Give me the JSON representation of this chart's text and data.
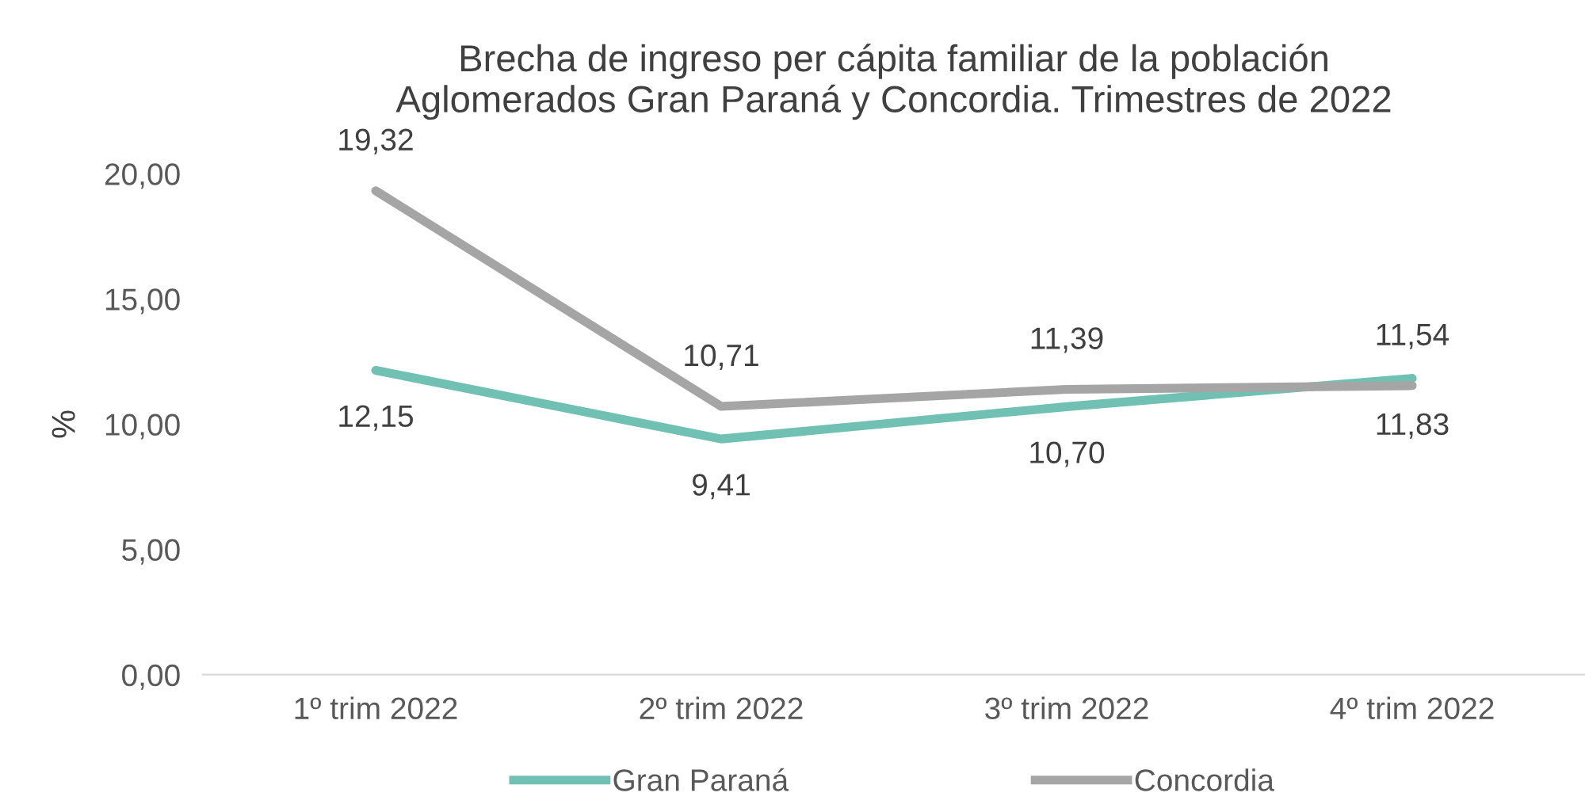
{
  "chart_data": {
    "type": "line",
    "title": "Brecha de ingreso per cápita familiar de la población\nAglomerados Gran Paraná y Concordia. Trimestres de 2022",
    "ylabel": "%",
    "categories": [
      "1º trim 2022",
      "2º trim 2022",
      "3º trim 2022",
      "4º trim 2022"
    ],
    "series": [
      {
        "name": "Gran Paraná",
        "color": "#70c1b3",
        "values": [
          12.15,
          9.41,
          10.7,
          11.83
        ],
        "value_labels": [
          "12,15",
          "9,41",
          "10,70",
          "11,83"
        ]
      },
      {
        "name": "Concordia",
        "color": "#a5a5a5",
        "values": [
          19.32,
          10.71,
          11.39,
          11.54
        ],
        "value_labels": [
          "19,32",
          "10,71",
          "11,39",
          "11,54"
        ]
      }
    ],
    "ylim": [
      0,
      20
    ],
    "yticks": [
      {
        "value": 0,
        "label": "0,00"
      },
      {
        "value": 5,
        "label": "5,00"
      },
      {
        "value": 10,
        "label": "10,00"
      },
      {
        "value": 15,
        "label": "15,00"
      },
      {
        "value": 20,
        "label": "20,00"
      }
    ],
    "grid": false,
    "legend": "bottom",
    "marker": "none",
    "line_style": "solid"
  }
}
